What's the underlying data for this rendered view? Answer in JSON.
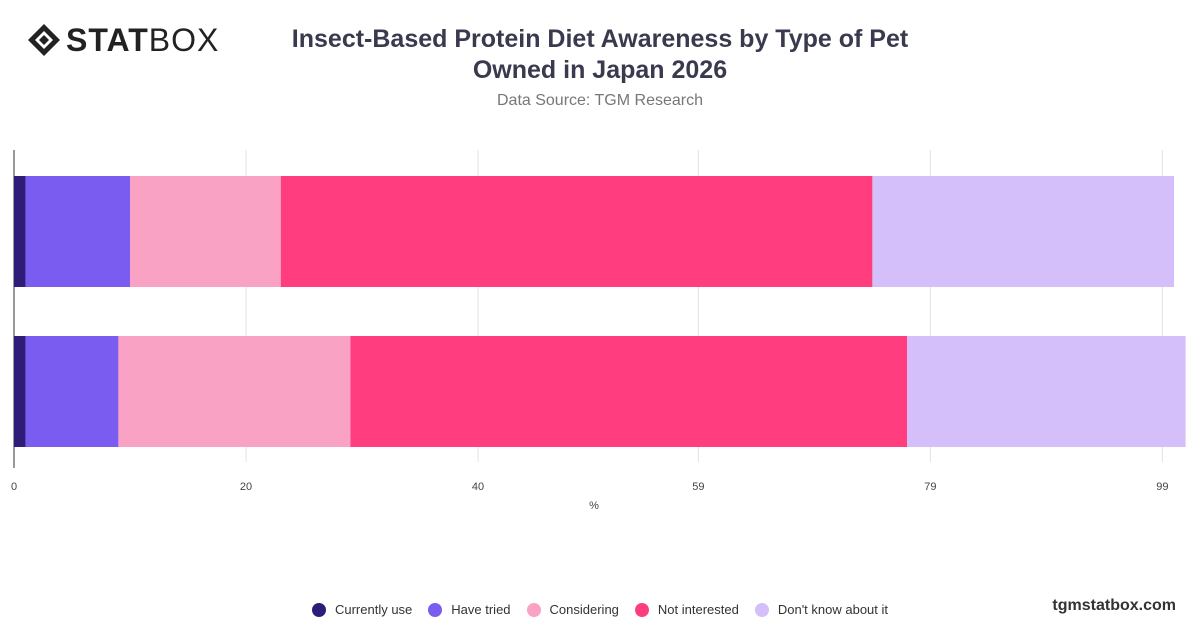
{
  "logo": {
    "text_bold": "STAT",
    "text_light": "BOX"
  },
  "header": {
    "title_line1": "Insect-Based Protein Diet Awareness by Type of Pet",
    "title_line2": "Owned in Japan 2026",
    "subtitle": "Data Source: TGM Research"
  },
  "chart_data": {
    "type": "bar",
    "orientation": "horizontal",
    "stacked": true,
    "title": "Insect-Based Protein Diet Awareness by Type of Pet Owned in Japan 2026",
    "xlabel": "%",
    "ylabel": "",
    "xlim": [
      0,
      100
    ],
    "x_ticks": [
      "0",
      "20",
      "40",
      "59",
      "79",
      "99"
    ],
    "categories": [
      "",
      ""
    ],
    "grid": true,
    "legend_position": "bottom",
    "series": [
      {
        "name": "Currently use",
        "color": "#2f1c7a",
        "values": [
          1,
          1
        ]
      },
      {
        "name": "Have tried",
        "color": "#7b5cf0",
        "values": [
          9,
          8
        ]
      },
      {
        "name": "Considering",
        "color": "#f9a2c3",
        "values": [
          13,
          20
        ]
      },
      {
        "name": "Not interested",
        "color": "#ff3d7f",
        "values": [
          51,
          48
        ]
      },
      {
        "name": "Don't know about it",
        "color": "#d4bffa",
        "values": [
          26,
          24
        ]
      }
    ]
  },
  "legend": [
    {
      "label": "Currently use",
      "color": "#2f1c7a"
    },
    {
      "label": "Have tried",
      "color": "#7b5cf0"
    },
    {
      "label": "Considering",
      "color": "#f9a2c3"
    },
    {
      "label": "Not interested",
      "color": "#ff3d7f"
    },
    {
      "label": "Don't know about it",
      "color": "#d4bffa"
    }
  ],
  "footer": {
    "watermark": "tgmstatbox.com"
  }
}
